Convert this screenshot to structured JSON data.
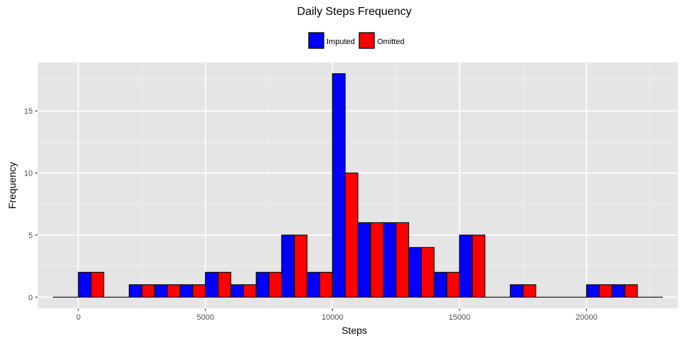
{
  "chart_data": {
    "type": "bar",
    "title": "Daily Steps Frequency",
    "xlabel": "Steps",
    "ylabel": "Frequency",
    "xlim": [
      -1600,
      23600
    ],
    "ylim": [
      -0.9,
      18.9
    ],
    "xticks": [
      0,
      5000,
      10000,
      15000,
      20000
    ],
    "yticks": [
      0,
      5,
      10,
      15
    ],
    "grid": true,
    "legend_position": "top",
    "bins": [
      [
        -1000,
        0
      ],
      [
        0,
        1000
      ],
      [
        1000,
        2000
      ],
      [
        2000,
        3000
      ],
      [
        3000,
        4000
      ],
      [
        4000,
        5000
      ],
      [
        5000,
        6000
      ],
      [
        6000,
        7000
      ],
      [
        7000,
        8000
      ],
      [
        8000,
        9000
      ],
      [
        9000,
        10000
      ],
      [
        10000,
        11000
      ],
      [
        11000,
        12000
      ],
      [
        12000,
        13000
      ],
      [
        13000,
        14000
      ],
      [
        14000,
        15000
      ],
      [
        15000,
        16000
      ],
      [
        16000,
        17000
      ],
      [
        17000,
        18000
      ],
      [
        18000,
        19000
      ],
      [
        19000,
        20000
      ],
      [
        20000,
        21000
      ],
      [
        21000,
        22000
      ],
      [
        22000,
        23000
      ]
    ],
    "series": [
      {
        "name": "Imputed",
        "color": "#0000ff",
        "values": [
          0,
          2,
          0,
          1,
          1,
          1,
          2,
          1,
          2,
          5,
          2,
          18,
          6,
          6,
          4,
          2,
          5,
          0,
          1,
          0,
          0,
          1,
          1,
          0
        ]
      },
      {
        "name": "Omitted",
        "color": "#ff0000",
        "values": [
          0,
          2,
          0,
          1,
          1,
          1,
          2,
          1,
          2,
          5,
          2,
          10,
          6,
          6,
          4,
          2,
          5,
          0,
          1,
          0,
          0,
          1,
          1,
          0
        ]
      }
    ]
  }
}
